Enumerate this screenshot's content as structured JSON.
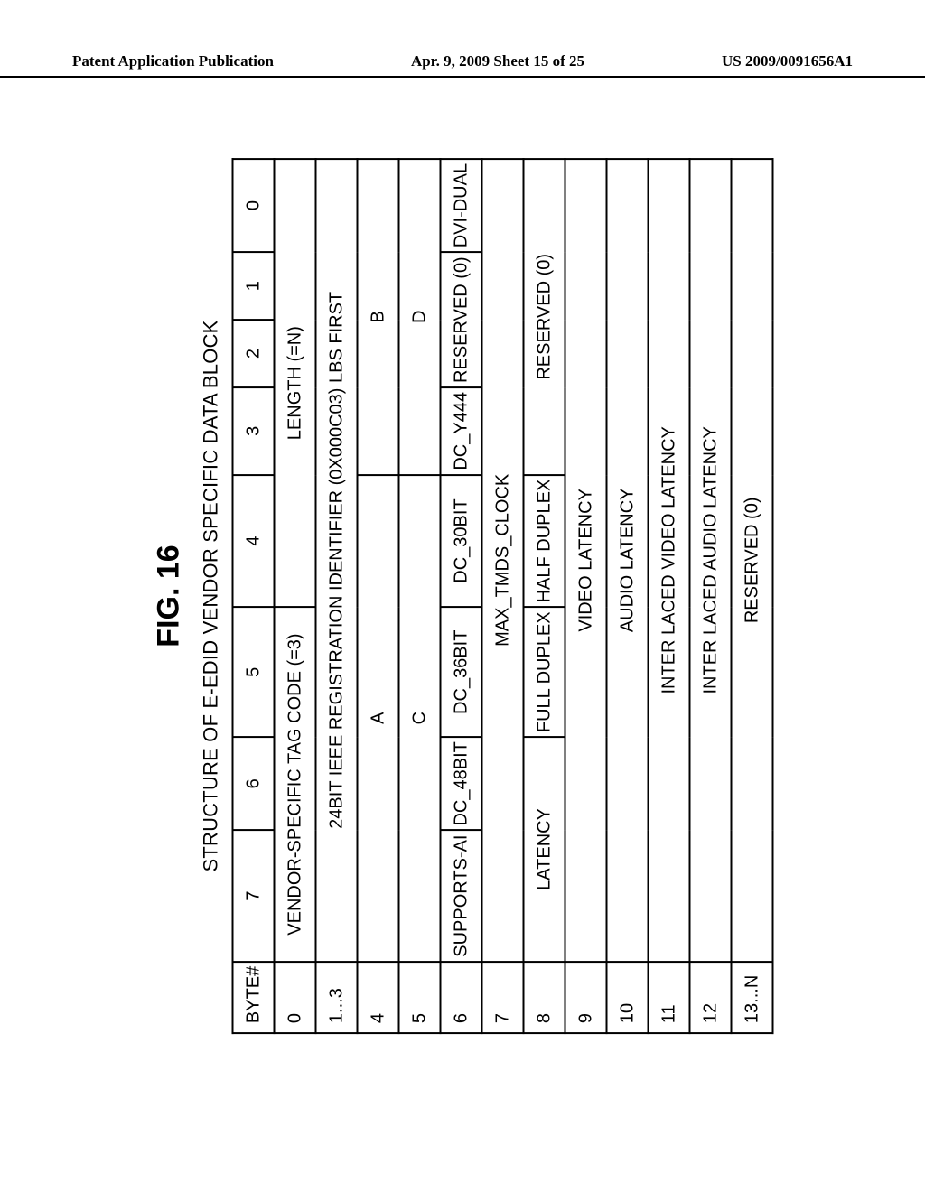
{
  "header": {
    "left": "Patent Application Publication",
    "center": "Apr. 9, 2009  Sheet 15 of 25",
    "right": "US 2009/0091656A1"
  },
  "figure": {
    "label": "FIG. 16",
    "caption": "STRUCTURE OF E-EDID VENDOR SPECIFIC DATA BLOCK"
  },
  "t": {
    "byteHeader": "BYTE#",
    "bits": {
      "b7": "7",
      "b6": "6",
      "b5": "5",
      "b4": "4",
      "b3": "3",
      "b2": "2",
      "b1": "1",
      "b0": "0"
    },
    "r0": {
      "byte": "0",
      "tag": "VENDOR-SPECIFIC TAG CODE (=3)",
      "len": "LENGTH (=N)"
    },
    "r1": {
      "byte": "1...3",
      "txt": "24BIT IEEE REGISTRATION IDENTIFIER (0X000C03) LBS FIRST"
    },
    "r4": {
      "byte": "4",
      "a": "A",
      "b": "B"
    },
    "r5": {
      "byte": "5",
      "c": "C",
      "d": "D"
    },
    "r6": {
      "byte": "6",
      "sai": "SUPPORTS-AI",
      "d48": "DC_48BIT",
      "d36": "DC_36BIT",
      "d30": "DC_30BIT",
      "y444": "DC_Y444",
      "res": "RESERVED (0)",
      "dvi": "DVI-DUAL"
    },
    "r7": {
      "byte": "7",
      "txt": "MAX_TMDS_CLOCK"
    },
    "r8": {
      "byte": "8",
      "lat": "LATENCY",
      "full": "FULL DUPLEX",
      "half": "HALF DUPLEX",
      "res": "RESERVED (0)"
    },
    "r9": {
      "byte": "9",
      "txt": "VIDEO LATENCY"
    },
    "r10": {
      "byte": "10",
      "txt": "AUDIO LATENCY"
    },
    "r11": {
      "byte": "11",
      "txt": "INTER LACED VIDEO LATENCY"
    },
    "r12": {
      "byte": "12",
      "txt": "INTER LACED AUDIO LATENCY"
    },
    "r13": {
      "byte": "13...N",
      "txt": "RESERVED (0)"
    }
  }
}
